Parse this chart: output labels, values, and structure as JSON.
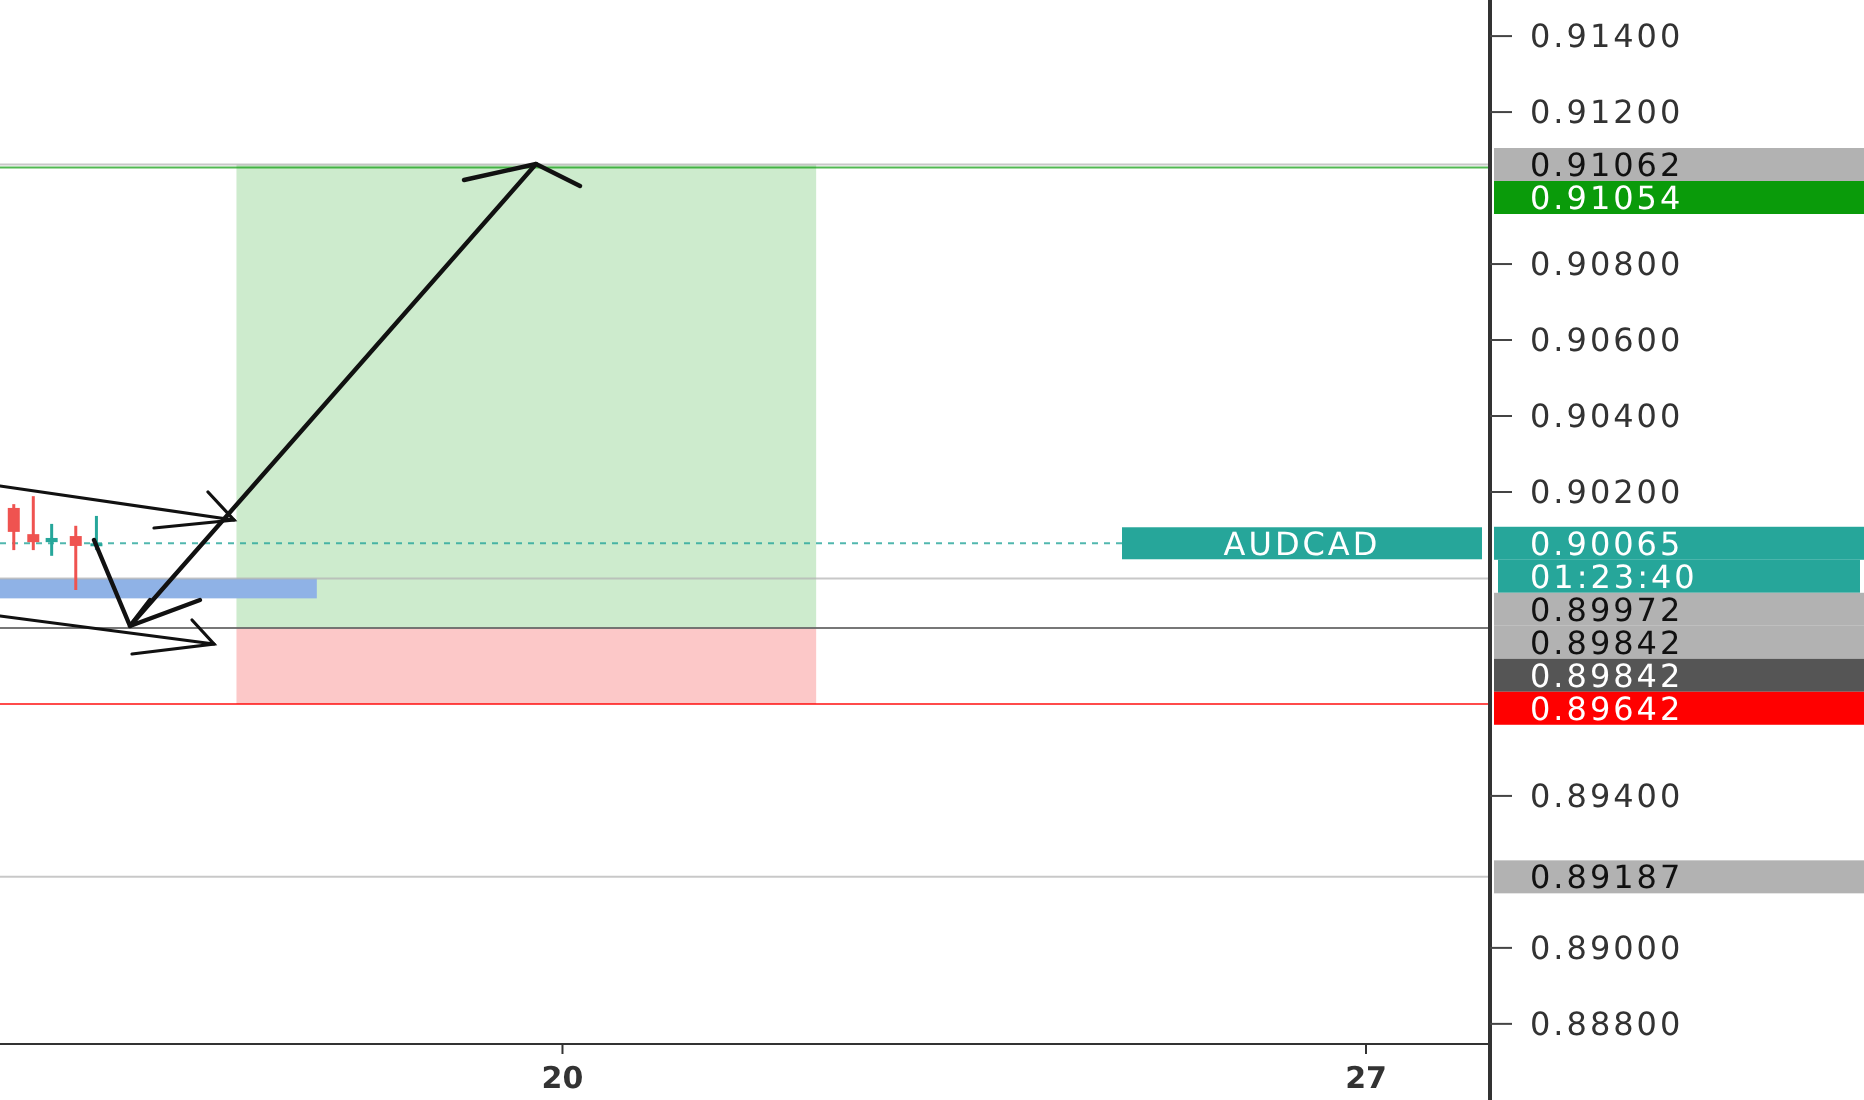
{
  "chart_data": {
    "type": "candlestick",
    "title": "AUDCAD",
    "x": [
      15.22,
      15.39,
      15.55,
      15.76,
      15.94
    ],
    "ohlc": [
      [
        0.90158,
        0.90168,
        0.90047,
        0.90095
      ],
      [
        0.90089,
        0.90189,
        0.90047,
        0.90068
      ],
      [
        0.90068,
        0.90116,
        0.90032,
        0.90079
      ],
      [
        0.90084,
        0.90111,
        0.89942,
        0.90058
      ],
      [
        0.90058,
        0.90137,
        0.90047,
        0.90065
      ]
    ],
    "xlim": [
      15.1,
      28.08
    ],
    "xticks": [
      20,
      27
    ],
    "ylim": [
      0.88747,
      0.91495
    ],
    "yticks": [
      {
        "value": 0.888,
        "label": "0.88800"
      },
      {
        "value": 0.89,
        "label": "0.89000"
      },
      {
        "value": 0.894,
        "label": "0.89400"
      },
      {
        "value": 0.902,
        "label": "0.90200"
      },
      {
        "value": 0.904,
        "label": "0.90400"
      },
      {
        "value": 0.906,
        "label": "0.90600"
      },
      {
        "value": 0.908,
        "label": "0.90800"
      },
      {
        "value": 0.912,
        "label": "0.91200"
      },
      {
        "value": 0.914,
        "label": "0.91400"
      }
    ],
    "bands": [
      {
        "axis": "y",
        "from": 0.89842,
        "to": 0.91062,
        "color": "#cdebcd"
      },
      {
        "axis": "y",
        "from": 0.89642,
        "to": 0.89842,
        "color": "#fcc8c8"
      },
      {
        "axis": "y",
        "from": 0.8992,
        "to": 0.89972,
        "color": "#8fb2e6"
      }
    ],
    "ref_lines": [
      {
        "axis": "y",
        "value": 0.91062,
        "label": "0.91062",
        "color": "#b2b2b2"
      },
      {
        "axis": "y",
        "value": 0.91054,
        "label": "0.91054",
        "color": "#0a9b0a"
      },
      {
        "axis": "y",
        "value": 0.90065,
        "label": "0.90065",
        "color": "#26a69a",
        "line_style": "dashed"
      },
      {
        "axis": "y",
        "value": 0.89972,
        "label": "0.89972",
        "color": "#b2b2b2"
      },
      {
        "axis": "y",
        "value": 0.89842,
        "label": "0.89842",
        "color": "#b2b2b2"
      },
      {
        "axis": "y",
        "value": 0.89842,
        "label": "0.89842",
        "color": "#555555"
      },
      {
        "axis": "y",
        "value": 0.89642,
        "label": "0.89642",
        "color": "#ff0000"
      },
      {
        "axis": "y",
        "value": 0.89187,
        "label": "0.89187",
        "color": "#b2b2b2"
      }
    ],
    "annotations": [
      "01:23:40"
    ],
    "grid": false
  }
}
